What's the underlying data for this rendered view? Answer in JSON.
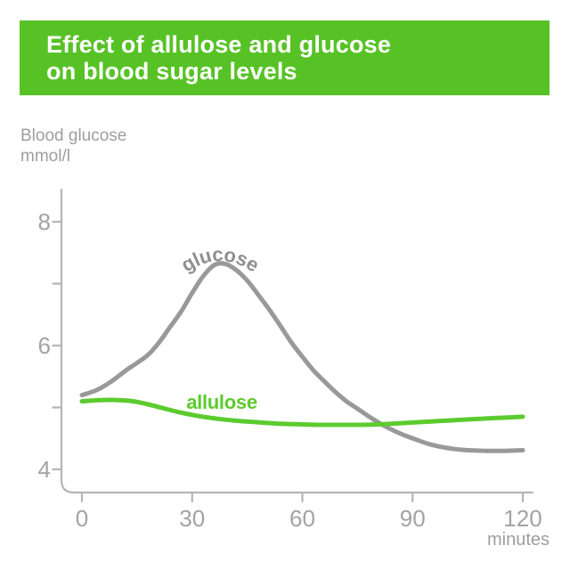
{
  "header": {
    "title_line1": "Effect of allulose and glucose",
    "title_line2": "on blood sugar levels",
    "bg_color": "#57C226",
    "text_color": "#ffffff"
  },
  "y_axis_title": {
    "line1": "Blood glucose",
    "line2": "mmol/l"
  },
  "x_axis_title": "minutes",
  "chart_data": {
    "type": "line",
    "title": "Effect of allulose and glucose on blood sugar levels",
    "xlabel": "minutes",
    "ylabel": "Blood glucose mmol/l",
    "xlim": [
      0,
      120
    ],
    "ylim": [
      3.6,
      8.5
    ],
    "grid": false,
    "legend_position": "inline-curve-labels",
    "x_ticks": [
      0,
      30,
      60,
      90,
      120
    ],
    "y_ticks": [
      4,
      5,
      6,
      7,
      8
    ],
    "y_tick_labeled": [
      4,
      6,
      8
    ],
    "series": [
      {
        "name": "glucose",
        "color": "#999999",
        "label_color": "#8f8f8f",
        "points": [
          [
            0,
            5.2
          ],
          [
            4,
            5.28
          ],
          [
            8,
            5.42
          ],
          [
            12,
            5.6
          ],
          [
            15,
            5.72
          ],
          [
            18,
            5.85
          ],
          [
            21,
            6.05
          ],
          [
            24,
            6.3
          ],
          [
            27,
            6.55
          ],
          [
            30,
            6.85
          ],
          [
            33,
            7.12
          ],
          [
            36,
            7.3
          ],
          [
            39,
            7.32
          ],
          [
            42,
            7.22
          ],
          [
            45,
            7.05
          ],
          [
            48,
            6.82
          ],
          [
            51,
            6.58
          ],
          [
            54,
            6.32
          ],
          [
            57,
            6.05
          ],
          [
            60,
            5.82
          ],
          [
            63,
            5.6
          ],
          [
            66,
            5.42
          ],
          [
            69,
            5.25
          ],
          [
            72,
            5.1
          ],
          [
            75,
            4.98
          ],
          [
            79,
            4.82
          ],
          [
            83,
            4.68
          ],
          [
            87,
            4.57
          ],
          [
            91,
            4.48
          ],
          [
            95,
            4.4
          ],
          [
            100,
            4.34
          ],
          [
            105,
            4.31
          ],
          [
            110,
            4.3
          ],
          [
            115,
            4.3
          ],
          [
            120,
            4.31
          ]
        ]
      },
      {
        "name": "allulose",
        "color": "#5CCB2E",
        "label_color": "#5CCB2E",
        "points": [
          [
            0,
            5.1
          ],
          [
            5,
            5.12
          ],
          [
            10,
            5.12
          ],
          [
            14,
            5.1
          ],
          [
            18,
            5.05
          ],
          [
            22,
            4.99
          ],
          [
            26,
            4.93
          ],
          [
            30,
            4.88
          ],
          [
            34,
            4.84
          ],
          [
            38,
            4.81
          ],
          [
            43,
            4.78
          ],
          [
            48,
            4.76
          ],
          [
            53,
            4.74
          ],
          [
            58,
            4.73
          ],
          [
            64,
            4.72
          ],
          [
            70,
            4.72
          ],
          [
            76,
            4.72
          ],
          [
            82,
            4.73
          ],
          [
            88,
            4.75
          ],
          [
            94,
            4.77
          ],
          [
            100,
            4.79
          ],
          [
            106,
            4.81
          ],
          [
            113,
            4.83
          ],
          [
            120,
            4.85
          ]
        ]
      }
    ]
  },
  "colors": {
    "axis": "#b5b5b5",
    "tick_text": "#a3a3a3",
    "gray_text": "#9e9e9e",
    "glucose_line": "#999999",
    "allulose_line": "#5CCB2E"
  }
}
